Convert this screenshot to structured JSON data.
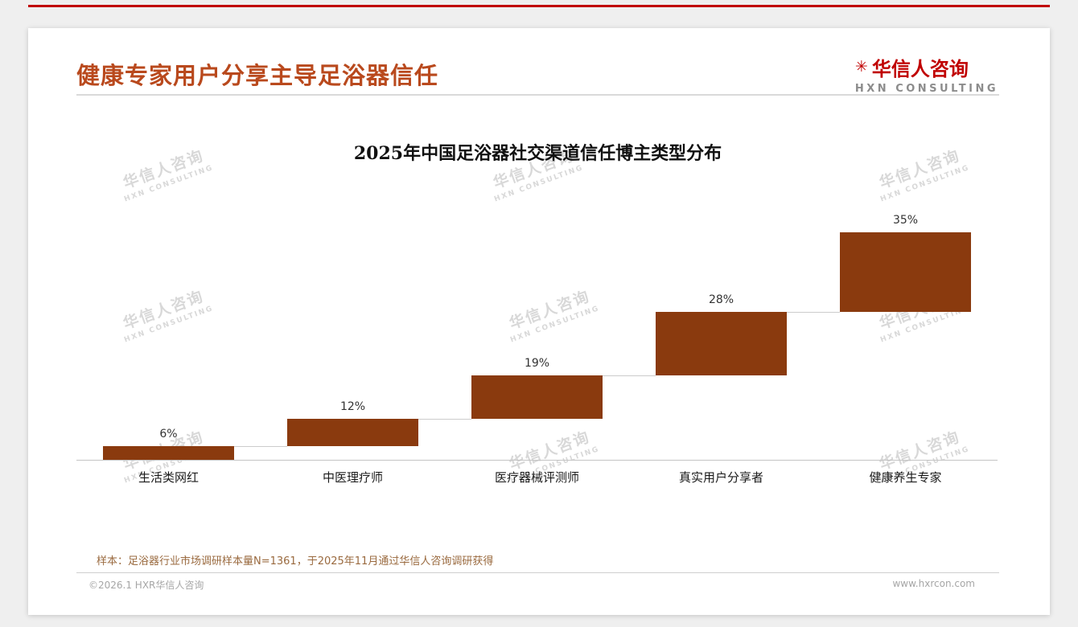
{
  "header": {
    "title": "健康专家用户分享主导足浴器信任",
    "logo": {
      "icon": "✳",
      "name_cn": "华信人咨询",
      "name_en": "HXN CONSULTING"
    }
  },
  "chart_data": {
    "type": "bar",
    "variant": "waterfall-steps",
    "title": "2025年中国足浴器社交渠道信任博主类型分布",
    "categories": [
      "生活类网红",
      "中医理疗师",
      "医疗器械评测师",
      "真实用户分享者",
      "健康养生专家"
    ],
    "values": [
      6,
      12,
      19,
      28,
      35
    ],
    "value_labels": [
      "6%",
      "12%",
      "19%",
      "28%",
      "35%"
    ],
    "cumulative_start": [
      0,
      6,
      18,
      37,
      65
    ],
    "unit": "%",
    "ylim": [
      0,
      100
    ],
    "grid": false,
    "legend": false,
    "bar_color": "#8a3a0e",
    "connector_color": "#cccccc"
  },
  "watermark": {
    "line1": "华信人咨询",
    "line2": "HXN CONSULTING"
  },
  "footnote": "样本：足浴器行业市场调研样本量N=1361，于2025年11月通过华信人咨询调研获得",
  "footer": {
    "left": "©2026.1 HXR华信人咨询",
    "right": "www.hxrcon.com"
  },
  "colors": {
    "accent_line": "#c00000",
    "title": "#b9491d",
    "logo_red": "#c00000"
  }
}
